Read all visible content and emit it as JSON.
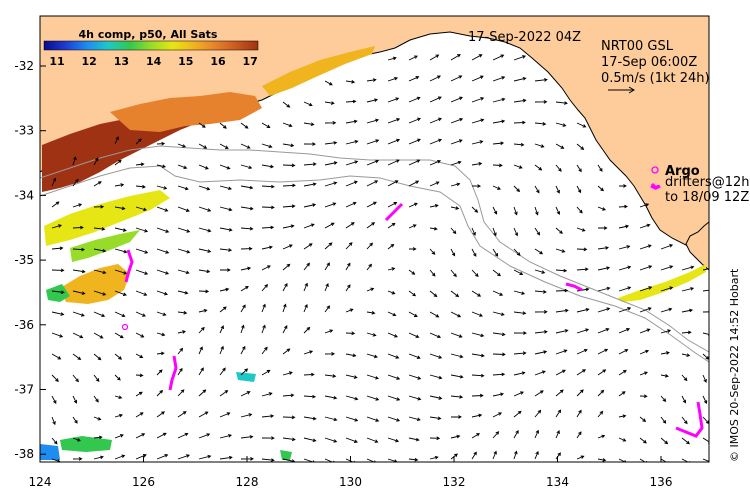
{
  "colorbar": {
    "title": "4h comp, p50, All Sats",
    "labels": [
      "11",
      "12",
      "13",
      "14",
      "15",
      "16",
      "17"
    ],
    "colors": [
      "#0a0a8c",
      "#1e3cd2",
      "#1e8cf0",
      "#1ec8c8",
      "#32c850",
      "#96dc28",
      "#e6e614",
      "#f0b41e",
      "#e6822d",
      "#c85a1e",
      "#a03214"
    ]
  },
  "datetime_label": "17-Sep-2022 04Z",
  "currents_legend": {
    "source": "NRT00 GSL",
    "time": "17-Sep 06:00Z",
    "scale": "0.5m/s (1kt 24h)"
  },
  "argo_legend": {
    "title": "Argo",
    "line1": "drifters@12h",
    "line2": "to 18/09 12Z"
  },
  "credit": "© IMOS 20-Sep-2022 14:52 Hobart",
  "axes": {
    "x_ticks": [
      "124",
      "126",
      "128",
      "130",
      "132",
      "134",
      "136"
    ],
    "y_ticks": [
      "-32",
      "-33",
      "-34",
      "-35",
      "-36",
      "-37",
      "-38"
    ]
  },
  "colors": {
    "land": "#fdcc9a",
    "argo": "#ff00ff",
    "contour": "#999999"
  }
}
